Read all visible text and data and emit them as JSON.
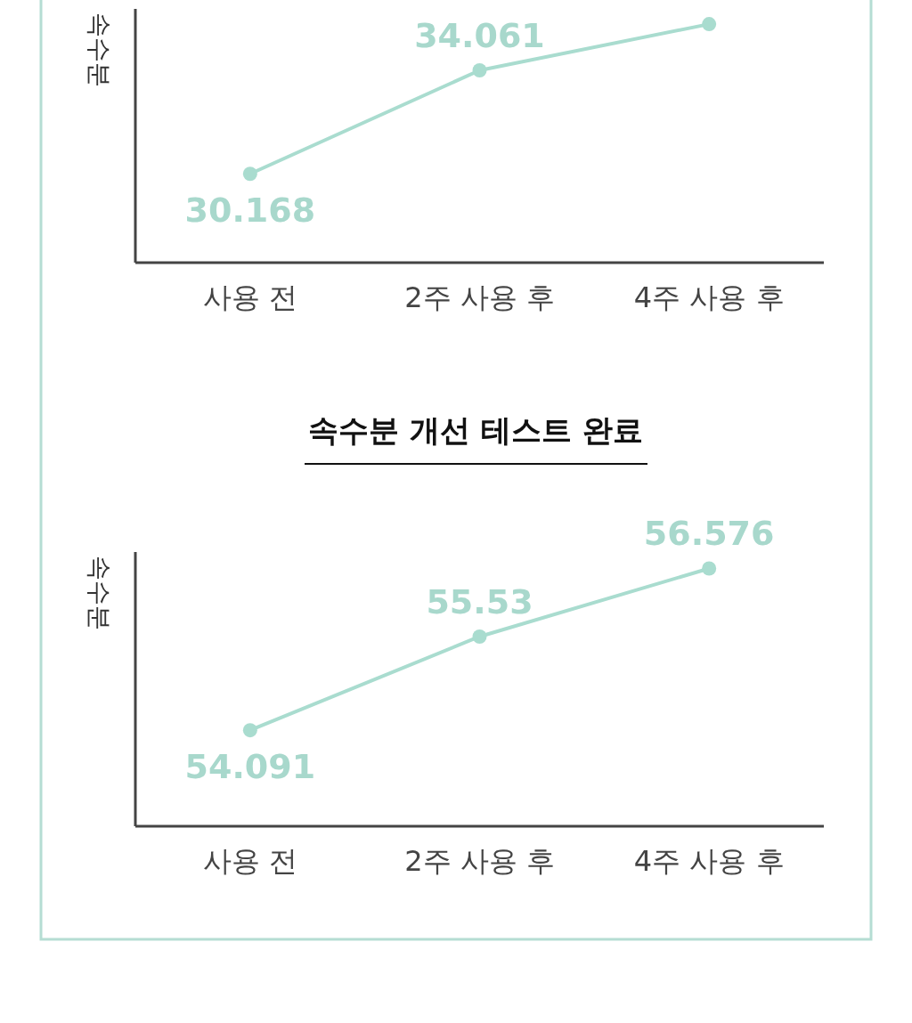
{
  "chart_data": [
    {
      "type": "line",
      "ylabel": "속수분",
      "categories": [
        "사용 전",
        "2주 사용 후",
        "4주 사용 후"
      ],
      "marker": "circle",
      "series": [
        {
          "color": "#a9dccf",
          "values": [
            30.168,
            34.061,
            35.8
          ],
          "value_labels": [
            "30.168",
            "34.061",
            null
          ]
        }
      ]
    },
    {
      "type": "line",
      "title": "속수분 개선 테스트 완료",
      "ylabel": "속수분",
      "categories": [
        "사용 전",
        "2주 사용 후",
        "4주 사용 후"
      ],
      "marker": "circle",
      "data_labels": true,
      "series": [
        {
          "color": "#a9dccf",
          "values": [
            54.091,
            55.53,
            56.576
          ]
        }
      ]
    }
  ]
}
